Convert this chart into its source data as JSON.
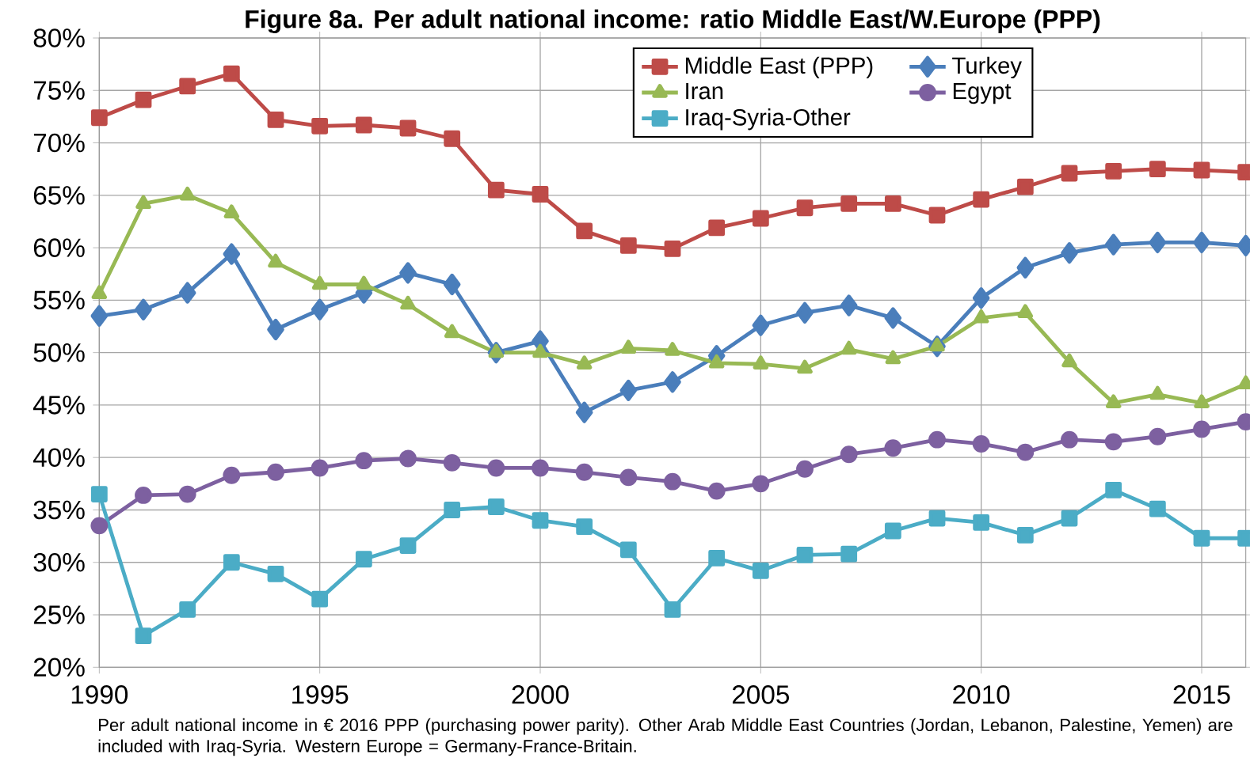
{
  "chart_data": {
    "type": "line",
    "title": "Figure 8a. Per adult national income: ratio Middle East/W.Europe (PPP)",
    "x": [
      1990,
      1991,
      1992,
      1993,
      1994,
      1995,
      1996,
      1997,
      1998,
      1999,
      2000,
      2001,
      2002,
      2003,
      2004,
      2005,
      2006,
      2007,
      2008,
      2009,
      2010,
      2011,
      2012,
      2013,
      2014,
      2015,
      2016
    ],
    "series": [
      {
        "name": "Middle East (PPP)",
        "color": "#be4b48",
        "marker": "square",
        "values": [
          72.4,
          74.1,
          75.4,
          76.6,
          72.2,
          71.6,
          71.7,
          71.4,
          70.4,
          65.5,
          65.1,
          61.6,
          60.2,
          59.9,
          61.9,
          62.8,
          63.8,
          64.2,
          64.2,
          63.1,
          64.6,
          65.8,
          67.1,
          67.3,
          67.5,
          67.4,
          67.2
        ]
      },
      {
        "name": "Turkey",
        "color": "#4a7ebb",
        "marker": "diamond",
        "values": [
          53.5,
          54.1,
          55.7,
          59.4,
          52.2,
          54.1,
          55.7,
          57.6,
          56.5,
          50.0,
          51.1,
          44.3,
          46.4,
          47.2,
          49.7,
          52.6,
          53.8,
          54.5,
          53.3,
          50.6,
          55.2,
          58.1,
          59.5,
          60.3,
          60.5,
          60.5,
          60.2
        ]
      },
      {
        "name": "Iran",
        "color": "#98b954",
        "marker": "triangle",
        "values": [
          55.6,
          64.2,
          65.0,
          63.3,
          58.6,
          56.5,
          56.5,
          54.6,
          51.9,
          50.0,
          50.0,
          48.9,
          50.4,
          50.2,
          49.0,
          48.9,
          48.5,
          50.3,
          49.4,
          50.6,
          53.3,
          53.8,
          49.1,
          45.2,
          46.0,
          45.2,
          47.0
        ]
      },
      {
        "name": "Egypt",
        "color": "#7d60a0",
        "marker": "circle",
        "values": [
          33.5,
          36.4,
          36.5,
          38.3,
          38.6,
          39.0,
          39.7,
          39.9,
          39.5,
          39.0,
          39.0,
          38.6,
          38.1,
          37.7,
          36.8,
          37.5,
          38.9,
          40.3,
          40.9,
          41.7,
          41.3,
          40.5,
          41.7,
          41.5,
          42.0,
          42.7,
          43.4
        ]
      },
      {
        "name": "Iraq-Syria-Other",
        "color": "#4bacc6",
        "marker": "square",
        "values": [
          36.5,
          23.0,
          25.5,
          30.0,
          28.9,
          26.5,
          30.3,
          31.6,
          35.0,
          35.3,
          34.0,
          33.4,
          31.2,
          25.5,
          30.4,
          29.2,
          30.7,
          30.8,
          33.0,
          34.2,
          33.8,
          32.6,
          34.2,
          36.9,
          35.1,
          32.3,
          32.3
        ]
      }
    ],
    "xlim": [
      1990,
      2016
    ],
    "xticks": [
      1990,
      1995,
      2000,
      2005,
      2010,
      2015
    ],
    "ylim": [
      20,
      80
    ],
    "yticks": [
      {
        "value": 20,
        "label": "20%"
      },
      {
        "value": 25,
        "label": "25%"
      },
      {
        "value": 30,
        "label": "30%"
      },
      {
        "value": 35,
        "label": "35%"
      },
      {
        "value": 40,
        "label": "40%"
      },
      {
        "value": 45,
        "label": "45%"
      },
      {
        "value": 50,
        "label": "50%"
      },
      {
        "value": 55,
        "label": "55%"
      },
      {
        "value": 60,
        "label": "60%"
      },
      {
        "value": 65,
        "label": "65%"
      },
      {
        "value": 70,
        "label": "70%"
      },
      {
        "value": 75,
        "label": "75%"
      },
      {
        "value": 80,
        "label": "80%"
      }
    ],
    "grid": true,
    "legend": "top",
    "line_style": "solid",
    "annotations": [
      "Per adult national income in € 2016 PPP (purchasing power parity). Other Arab Middle East Countries (Jordan, Lebanon, Palestine, Yemen) are included with Iraq-Syria. Western Europe = Germany-France-Britain."
    ]
  }
}
